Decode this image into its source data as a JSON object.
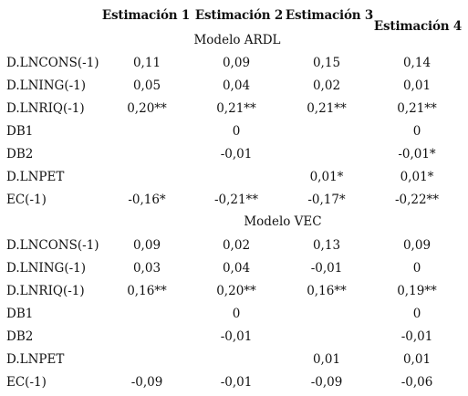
{
  "headers": [
    "Estimación 1",
    "Estimación 2",
    "Estimación 3",
    "Estimación 4"
  ],
  "sections": [
    {
      "title": "Modelo ARDL",
      "rows": [
        {
          "label": "D.LNCONS(-1)",
          "values": [
            "0,11",
            "0,09",
            "0,15",
            "0,14"
          ]
        },
        {
          "label": "D.LNING(-1)",
          "values": [
            "0,05",
            "0,04",
            "0,02",
            "0,01"
          ]
        },
        {
          "label": "D.LNRIQ(-1)",
          "values": [
            "0,20**",
            "0,21**",
            "0,21**",
            "0,21**"
          ]
        },
        {
          "label": "DB1",
          "values": [
            "",
            "0",
            "",
            "0"
          ]
        },
        {
          "label": "DB2",
          "values": [
            "",
            "-0,01",
            "",
            "-0,01*"
          ]
        },
        {
          "label": "D.LNPET",
          "values": [
            "",
            "",
            "0,01*",
            "0,01*"
          ]
        },
        {
          "label": "EC(-1)",
          "values": [
            "-0,16*",
            "-0,21**",
            "-0,17*",
            "-0,22**"
          ]
        }
      ]
    },
    {
      "title": "Modelo VEC",
      "rows": [
        {
          "label": "D.LNCONS(-1)",
          "values": [
            "0,09",
            "0,02",
            "0,13",
            "0,09"
          ]
        },
        {
          "label": "D.LNING(-1)",
          "values": [
            "0,03",
            "0,04",
            "-0,01",
            "0"
          ]
        },
        {
          "label": "D.LNRIQ(-1)",
          "values": [
            "0,16**",
            "0,20**",
            "0,16**",
            "0,19**"
          ]
        },
        {
          "label": "DB1",
          "values": [
            "",
            "0",
            "",
            "0"
          ]
        },
        {
          "label": "DB2",
          "values": [
            "",
            "-0,01",
            "",
            "-0,01"
          ]
        },
        {
          "label": "D.LNPET",
          "values": [
            "",
            "",
            "0,01",
            "0,01"
          ]
        },
        {
          "label": "EC(-1)",
          "values": [
            "-0,09",
            "-0,01",
            "-0,09",
            "-0,06"
          ]
        }
      ]
    }
  ]
}
